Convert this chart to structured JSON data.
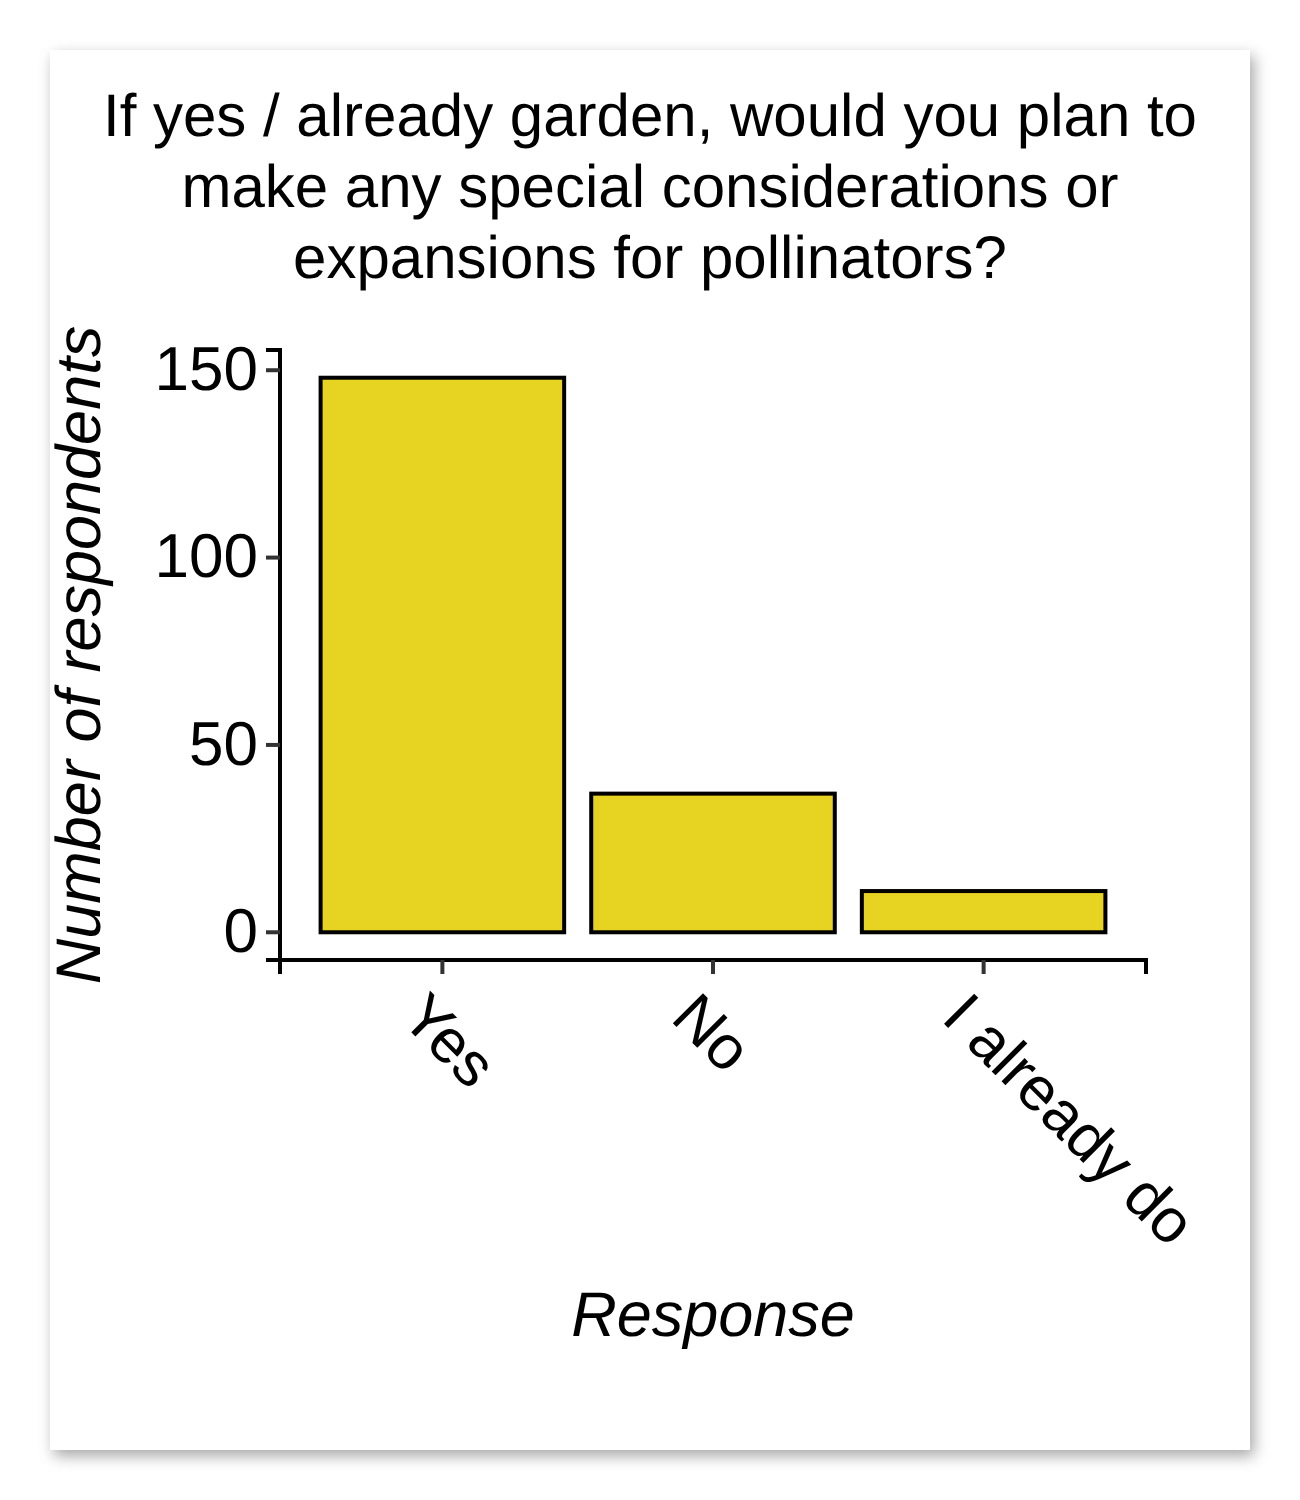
{
  "chart_data": {
    "type": "bar",
    "title": "If yes / already garden, would you plan to make any special considerations or expansions for pollinators?",
    "xlabel": "Response",
    "ylabel": "Number of respondents",
    "categories": [
      "Yes",
      "No",
      "I already do"
    ],
    "values": [
      148,
      37,
      11
    ],
    "color": "#e6d322",
    "ylim": [
      -7.4,
      155.4
    ],
    "yticks": [
      0,
      50,
      100,
      150
    ]
  }
}
